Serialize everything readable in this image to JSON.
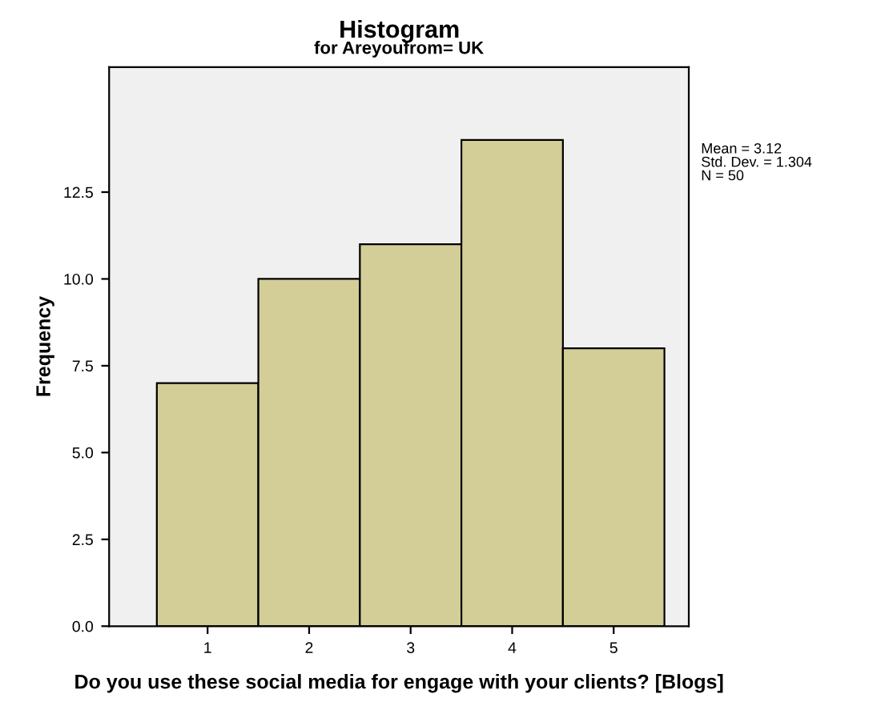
{
  "chart_data": {
    "type": "histogram",
    "title": "Histogram",
    "subtitle": "for Areyoufrom= UK",
    "xlabel": "Do you use these social media for engage with your clients? [Blogs]",
    "ylabel": "Frequency",
    "bins": [
      0.5,
      1.5,
      2.5,
      3.5,
      4.5,
      5.5
    ],
    "values": [
      7,
      10,
      11,
      14,
      8
    ],
    "color": "#d3ce97",
    "xlim": [
      0.03,
      5.74
    ],
    "xticks": [
      1,
      2,
      3,
      4,
      5
    ],
    "ylim": [
      0,
      16.1
    ],
    "yticks": [
      {
        "value": 0,
        "label": "0.0"
      },
      {
        "value": 2.5,
        "label": "2.5"
      },
      {
        "value": 5,
        "label": "5.0"
      },
      {
        "value": 7.5,
        "label": "7.5"
      },
      {
        "value": 10,
        "label": "10.0"
      },
      {
        "value": 12.5,
        "label": "12.5"
      }
    ],
    "annotations": [
      "Mean = 3.12",
      "Std. Dev. = 1.304",
      "N = 50"
    ],
    "grid": false,
    "legend": false
  }
}
